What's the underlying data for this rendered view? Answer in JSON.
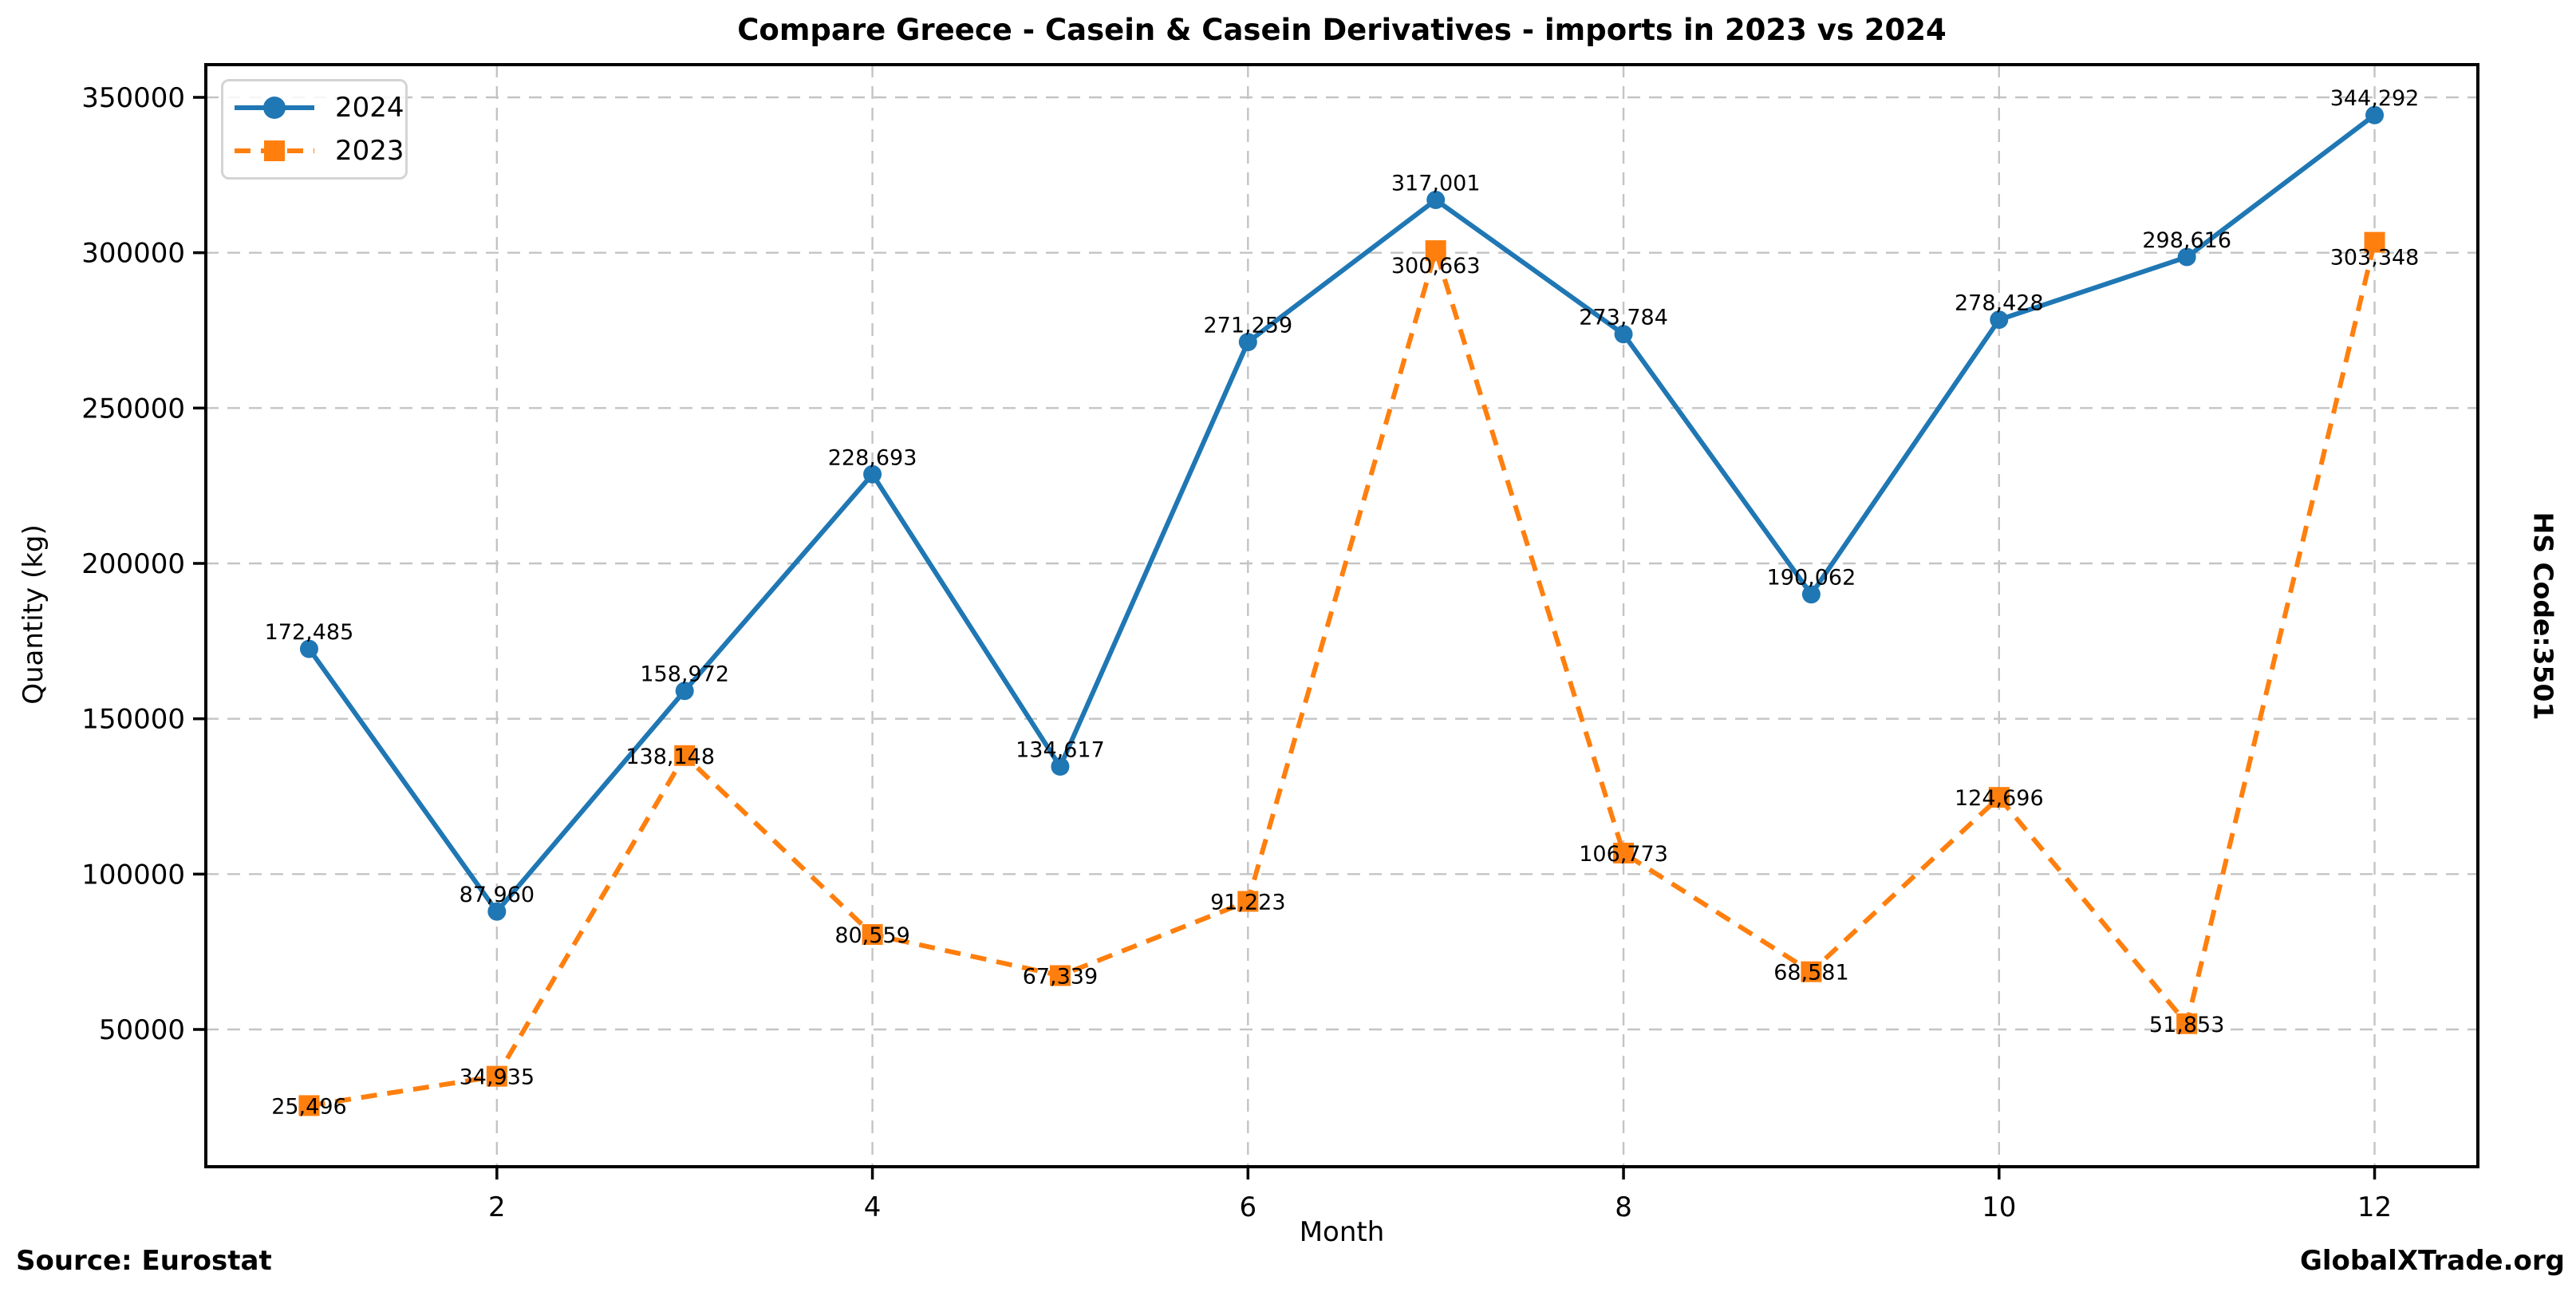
{
  "chart_data": {
    "type": "line",
    "title": "Compare Greece - Casein & Casein Derivatives - imports in 2023 vs 2024",
    "xlabel": "Month",
    "ylabel": "Quantity (kg)",
    "x": [
      1,
      2,
      3,
      4,
      5,
      6,
      7,
      8,
      9,
      10,
      11,
      12
    ],
    "series": [
      {
        "name": "2024",
        "color": "#1f77b4",
        "marker": "circle",
        "line_style": "solid",
        "values": [
          172485,
          87960,
          158972,
          228693,
          134617,
          271259,
          317001,
          273784,
          190062,
          278428,
          298616,
          344292
        ],
        "labels": [
          "172,485",
          "87,960",
          "158,972",
          "228,693",
          "134,617",
          "271,259",
          "317,001",
          "273,784",
          "190,062",
          "278,428",
          "298,616",
          "344,292"
        ]
      },
      {
        "name": "2023",
        "color": "#ff7f0e",
        "marker": "square",
        "line_style": "dashed",
        "values": [
          25496,
          34935,
          138148,
          80559,
          67339,
          91223,
          300663,
          106773,
          68581,
          124696,
          51853,
          303348
        ],
        "labels": [
          "25,496",
          "34,935",
          "138,148",
          "80,559",
          "67,339",
          "91,223",
          "300,663",
          "106,773",
          "68,581",
          "124,696",
          "51,853",
          "303,348"
        ]
      }
    ],
    "xticks": [
      2,
      4,
      6,
      8,
      10,
      12
    ],
    "yticks": [
      50000,
      100000,
      150000,
      200000,
      250000,
      300000,
      350000
    ],
    "ytick_labels": [
      "50000",
      "100000",
      "150000",
      "200000",
      "250000",
      "300000",
      "350000"
    ],
    "xlim": [
      0.45,
      12.55
    ],
    "ylim": [
      5822,
      360531
    ],
    "grid": true,
    "legend_position": "upper left"
  },
  "footer": {
    "source": "Source: Eurostat",
    "brand": "GlobalXTrade.org"
  },
  "side_label": "HS Code:3501",
  "colors": {
    "series_2024": "#1f77b4",
    "series_2023": "#ff7f0e",
    "grid": "#c4c4c4",
    "spine": "#000000",
    "background": "#ffffff",
    "text": "#000000"
  }
}
